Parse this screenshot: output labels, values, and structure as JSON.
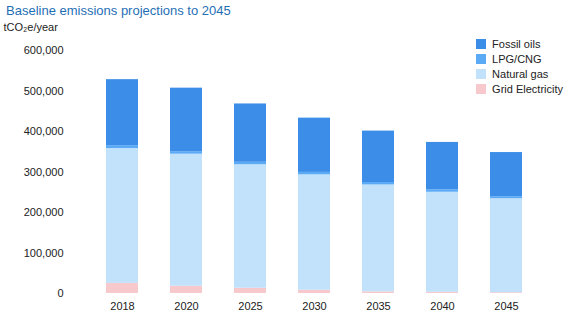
{
  "chart_data": {
    "type": "bar",
    "title": "Baseline emissions projections to 2045",
    "y_label": "tCO₂e/year",
    "stacked": true,
    "legend": "top-right",
    "grid": false,
    "categories": [
      "2018",
      "2020",
      "2025",
      "2030",
      "2035",
      "2040",
      "2045"
    ],
    "series": [
      {
        "name": "Grid Electricity",
        "color": "#f7c8cc",
        "values": [
          25000,
          18000,
          13000,
          8000,
          4000,
          3000,
          2000
        ]
      },
      {
        "name": "Natural gas",
        "color": "#c2e2fb",
        "values": [
          333000,
          326000,
          305000,
          285000,
          264000,
          247000,
          232000
        ]
      },
      {
        "name": "LPG/CNG",
        "color": "#5aaaf5",
        "values": [
          7000,
          6000,
          6000,
          6000,
          6000,
          6000,
          5000
        ]
      },
      {
        "name": "Fossil oils",
        "color": "#3b8de8",
        "values": [
          163000,
          157000,
          144000,
          134000,
          127000,
          117000,
          109000
        ]
      }
    ],
    "ylim": [
      0,
      600000
    ],
    "yticks": [
      0,
      {
        "value": 100000,
        "label": "100,000"
      },
      {
        "value": 200000,
        "label": "200,000"
      },
      {
        "value": 300000,
        "label": "300,000"
      },
      {
        "value": 400000,
        "label": "400,000"
      },
      {
        "value": 500000,
        "label": "500,000"
      },
      {
        "value": 600000,
        "label": "600,000"
      }
    ]
  }
}
